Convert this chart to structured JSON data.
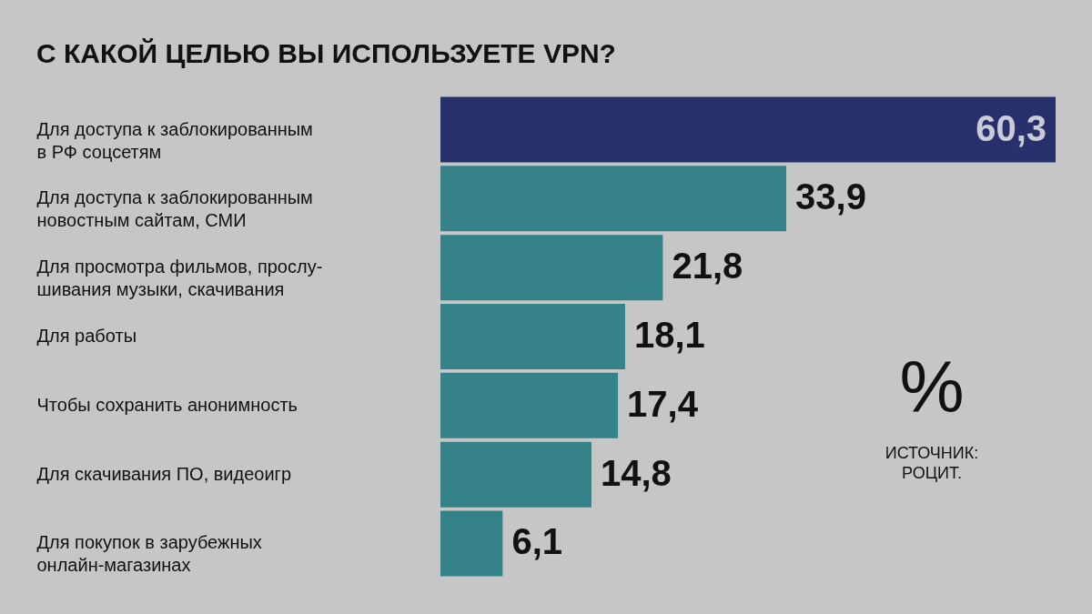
{
  "chart_data": {
    "type": "bar",
    "orientation": "horizontal",
    "title": "С КАКОЙ ЦЕЛЬЮ ВЫ ИСПОЛЬЗУЕТЕ VPN?",
    "categories": [
      "Для доступа к заблокированным\nв РФ соцсетям",
      "Для доступа к заблокированным\nновостным сайтам, СМИ",
      "Для просмотра фильмов, прослу-\nшивания музыки, скачивания",
      "Для работы",
      "Чтобы сохранить анонимность",
      "Для скачивания ПО, видеоигр",
      "Для покупок в зарубежных\nонлайн-магазинах"
    ],
    "values": [
      60.3,
      33.9,
      21.8,
      18.1,
      17.4,
      14.8,
      6.1
    ],
    "value_labels": [
      "60,3",
      "33,9",
      "21,8",
      "18,1",
      "17,4",
      "14,8",
      "6,1"
    ],
    "colors": [
      "#27306b",
      "#358389",
      "#358389",
      "#358389",
      "#358389",
      "#358389",
      "#358389"
    ],
    "annotations": [
      "%",
      "ИСТОЧНИК:\nРОЦИТ."
    ]
  }
}
